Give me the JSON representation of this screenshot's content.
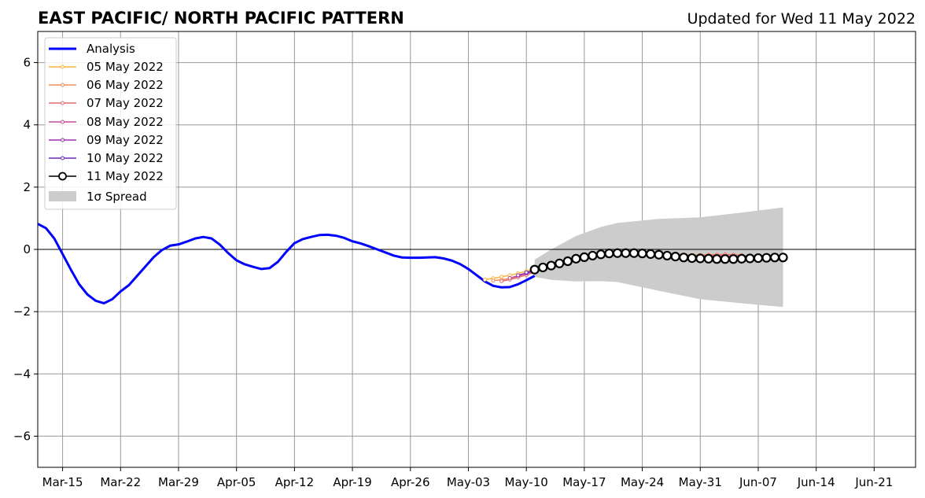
{
  "chart_data": {
    "type": "line",
    "title": "EAST PACIFIC/ NORTH PACIFIC PATTERN",
    "subtitle": "Updated for Wed 11 May 2022",
    "xlabel": "",
    "ylabel": "",
    "x_unit": "days since Mar-12",
    "xlim": [
      0,
      106
    ],
    "ylim": [
      -7,
      7
    ],
    "yticks": [
      6,
      4,
      2,
      0,
      -2,
      -4,
      -6
    ],
    "ytick_labels": [
      "6",
      "4",
      "2",
      "0",
      "−2",
      "−4",
      "−6"
    ],
    "xticks": [
      3,
      10,
      17,
      24,
      31,
      38,
      45,
      52,
      59,
      66,
      73,
      80,
      87,
      94,
      101
    ],
    "xtick_labels": [
      "Mar-15",
      "Mar-22",
      "Mar-29",
      "Apr-05",
      "Apr-12",
      "Apr-19",
      "Apr-26",
      "May-03",
      "May-10",
      "May-17",
      "May-24",
      "May-31",
      "Jun-07",
      "Jun-14",
      "Jun-21"
    ],
    "grid": true,
    "legend_position": "top-left",
    "analysis": {
      "name": "Analysis",
      "color": "#0000ff",
      "start": 0,
      "values": [
        0.82,
        0.68,
        0.35,
        -0.15,
        -0.65,
        -1.12,
        -1.45,
        -1.65,
        -1.73,
        -1.6,
        -1.35,
        -1.15,
        -0.85,
        -0.55,
        -0.25,
        -0.02,
        0.12,
        0.16,
        0.25,
        0.35,
        0.4,
        0.35,
        0.15,
        -0.12,
        -0.35,
        -0.48,
        -0.56,
        -0.63,
        -0.6,
        -0.4,
        -0.08,
        0.2,
        0.33,
        0.4,
        0.46,
        0.47,
        0.44,
        0.37,
        0.26,
        0.19,
        0.1,
        0.0,
        -0.1,
        -0.2,
        -0.26,
        -0.27,
        -0.27,
        -0.26,
        -0.25,
        -0.29,
        -0.36,
        -0.47,
        -0.63,
        -0.83,
        -1.03,
        -1.17,
        -1.22,
        -1.21,
        -1.12,
        -0.99,
        -0.85
      ]
    },
    "forecasts": [
      {
        "name": "05 May 2022",
        "color": "#fdb43a",
        "start": 54,
        "values": [
          -0.97,
          -0.93,
          -0.88,
          -0.83,
          -0.77,
          -0.7,
          -0.62,
          -0.55,
          -0.48,
          -0.41,
          -0.34,
          -0.28,
          -0.22,
          -0.17,
          -0.13,
          -0.1,
          -0.08,
          -0.07,
          -0.07,
          -0.08,
          -0.1,
          -0.12,
          -0.14,
          -0.16,
          -0.17,
          -0.18,
          -0.18,
          -0.18,
          -0.17,
          -0.17,
          -0.17
        ]
      },
      {
        "name": "06 May 2022",
        "color": "#f68d5b",
        "start": 55,
        "values": [
          -1.0,
          -0.98,
          -0.93,
          -0.86,
          -0.78,
          -0.69,
          -0.6,
          -0.52,
          -0.44,
          -0.37,
          -0.3,
          -0.24,
          -0.19,
          -0.15,
          -0.12,
          -0.1,
          -0.1,
          -0.1,
          -0.11,
          -0.13,
          -0.15,
          -0.17,
          -0.18,
          -0.19,
          -0.19,
          -0.18,
          -0.17,
          -0.17,
          -0.16,
          -0.17,
          -0.18
        ]
      },
      {
        "name": "07 May 2022",
        "color": "#e56b75",
        "start": 56,
        "values": [
          -1.02,
          -0.97,
          -0.9,
          -0.82,
          -0.73,
          -0.64,
          -0.55,
          -0.47,
          -0.4,
          -0.33,
          -0.27,
          -0.22,
          -0.18,
          -0.15,
          -0.13,
          -0.12,
          -0.12,
          -0.13,
          -0.15,
          -0.17,
          -0.19,
          -0.2,
          -0.21,
          -0.21,
          -0.2,
          -0.19,
          -0.18,
          -0.17,
          -0.18,
          -0.2,
          -0.22
        ]
      },
      {
        "name": "08 May 2022",
        "color": "#c84a98",
        "start": 57,
        "values": [
          -0.92,
          -0.85,
          -0.77,
          -0.69,
          -0.6,
          -0.52,
          -0.44,
          -0.37,
          -0.31,
          -0.26,
          -0.21,
          -0.18,
          -0.16,
          -0.15,
          -0.15,
          -0.16,
          -0.17,
          -0.19,
          -0.21,
          -0.23,
          -0.24,
          -0.25,
          -0.25,
          -0.24,
          -0.23,
          -0.22,
          -0.22,
          -0.23,
          -0.24,
          -0.25,
          -0.26
        ]
      },
      {
        "name": "09 May 2022",
        "color": "#9d2fb6",
        "start": 58,
        "values": [
          -0.83,
          -0.76,
          -0.68,
          -0.6,
          -0.52,
          -0.45,
          -0.38,
          -0.32,
          -0.27,
          -0.22,
          -0.19,
          -0.16,
          -0.15,
          -0.15,
          -0.16,
          -0.17,
          -0.19,
          -0.21,
          -0.23,
          -0.25,
          -0.27,
          -0.28,
          -0.28,
          -0.28,
          -0.27,
          -0.27,
          -0.27,
          -0.27,
          -0.27,
          -0.27,
          -0.27
        ]
      },
      {
        "name": "10 May 2022",
        "color": "#6a28b8",
        "start": 59,
        "values": [
          -0.74,
          -0.67,
          -0.6,
          -0.53,
          -0.46,
          -0.39,
          -0.32,
          -0.26,
          -0.21,
          -0.17,
          -0.15,
          -0.14,
          -0.14,
          -0.15,
          -0.16,
          -0.18,
          -0.21,
          -0.24,
          -0.26,
          -0.28,
          -0.29,
          -0.3,
          -0.3,
          -0.3,
          -0.3,
          -0.29,
          -0.28,
          -0.28,
          -0.27,
          -0.27,
          -0.27
        ]
      },
      {
        "name": "11 May 2022",
        "color": "#000000",
        "start": 60,
        "values": [
          -0.65,
          -0.58,
          -0.52,
          -0.45,
          -0.38,
          -0.3,
          -0.25,
          -0.2,
          -0.16,
          -0.13,
          -0.12,
          -0.12,
          -0.12,
          -0.13,
          -0.15,
          -0.17,
          -0.2,
          -0.23,
          -0.26,
          -0.28,
          -0.29,
          -0.3,
          -0.31,
          -0.31,
          -0.31,
          -0.3,
          -0.29,
          -0.28,
          -0.27,
          -0.26,
          -0.26
        ]
      }
    ],
    "spread": {
      "name": "1σ Spread",
      "color": "#cccccc",
      "days": [
        60,
        62,
        65,
        68,
        70,
        75,
        80,
        85,
        90
      ],
      "upper": [
        -0.33,
        0.0,
        0.43,
        0.72,
        0.85,
        0.98,
        1.03,
        1.18,
        1.35
      ],
      "lower": [
        -0.88,
        -0.98,
        -1.03,
        -1.02,
        -1.05,
        -1.33,
        -1.6,
        -1.73,
        -1.85
      ]
    }
  }
}
